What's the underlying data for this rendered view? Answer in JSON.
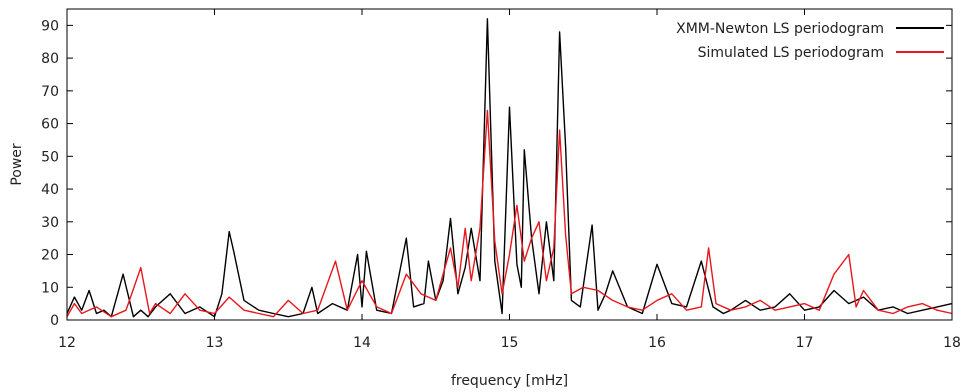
{
  "chart_data": {
    "type": "line",
    "title": "",
    "xlabel": "frequency [mHz]",
    "ylabel": "Power",
    "xlim": [
      12,
      18
    ],
    "ylim": [
      0,
      95
    ],
    "xticks": [
      12,
      13,
      14,
      15,
      16,
      17,
      18
    ],
    "yticks": [
      0,
      10,
      20,
      30,
      40,
      50,
      60,
      70,
      80,
      90
    ],
    "grid": false,
    "legend_position": "top-right",
    "series": [
      {
        "name": "XMM-Newton LS periodogram",
        "color": "#000000",
        "x": [
          12.0,
          12.05,
          12.1,
          12.15,
          12.2,
          12.25,
          12.3,
          12.38,
          12.45,
          12.5,
          12.55,
          12.6,
          12.7,
          12.8,
          12.9,
          13.0,
          13.05,
          13.1,
          13.13,
          13.2,
          13.3,
          13.4,
          13.5,
          13.6,
          13.66,
          13.7,
          13.8,
          13.9,
          13.97,
          14.0,
          14.03,
          14.1,
          14.2,
          14.3,
          14.35,
          14.42,
          14.45,
          14.5,
          14.55,
          14.6,
          14.65,
          14.7,
          14.74,
          14.8,
          14.85,
          14.9,
          14.95,
          15.0,
          15.05,
          15.08,
          15.1,
          15.15,
          15.2,
          15.25,
          15.3,
          15.34,
          15.38,
          15.42,
          15.48,
          15.56,
          15.6,
          15.65,
          15.7,
          15.8,
          15.9,
          16.0,
          16.1,
          16.2,
          16.3,
          16.38,
          16.45,
          16.5,
          16.6,
          16.7,
          16.8,
          16.9,
          17.0,
          17.1,
          17.2,
          17.3,
          17.4,
          17.5,
          17.6,
          17.7,
          17.8,
          17.9,
          18.0
        ],
        "y": [
          2,
          7,
          3,
          9,
          2,
          3,
          1,
          14,
          1,
          3,
          1,
          4,
          8,
          2,
          4,
          1,
          8,
          27,
          21,
          6,
          3,
          2,
          1,
          2,
          10,
          2,
          5,
          3,
          20,
          4,
          21,
          3,
          2,
          25,
          4,
          5,
          18,
          6,
          12,
          31,
          8,
          16,
          28,
          12,
          92,
          18,
          2,
          65,
          17,
          10,
          52,
          25,
          8,
          30,
          12,
          88,
          53,
          6,
          4,
          29,
          3,
          8,
          15,
          4,
          2,
          17,
          5,
          4,
          18,
          4,
          2,
          3,
          6,
          3,
          4,
          8,
          3,
          4,
          9,
          5,
          7,
          3,
          4,
          2,
          3,
          4,
          5
        ]
      },
      {
        "name": "Simulated LS periodogram",
        "color": "#e8171d",
        "x": [
          12.0,
          12.05,
          12.1,
          12.2,
          12.3,
          12.4,
          12.5,
          12.56,
          12.6,
          12.7,
          12.8,
          12.9,
          13.0,
          13.1,
          13.2,
          13.3,
          13.4,
          13.5,
          13.6,
          13.7,
          13.82,
          13.9,
          14.0,
          14.1,
          14.2,
          14.3,
          14.4,
          14.5,
          14.55,
          14.6,
          14.65,
          14.7,
          14.74,
          14.8,
          14.85,
          14.9,
          14.95,
          15.0,
          15.05,
          15.1,
          15.15,
          15.2,
          15.25,
          15.3,
          15.34,
          15.38,
          15.42,
          15.5,
          15.6,
          15.7,
          15.8,
          15.9,
          16.0,
          16.1,
          16.2,
          16.3,
          16.35,
          16.4,
          16.5,
          16.6,
          16.7,
          16.8,
          16.9,
          17.0,
          17.1,
          17.2,
          17.3,
          17.35,
          17.4,
          17.5,
          17.6,
          17.7,
          17.8,
          17.9,
          18.0
        ],
        "y": [
          1,
          5,
          2,
          4,
          1,
          3,
          16,
          2,
          5,
          2,
          8,
          3,
          2,
          7,
          3,
          2,
          1,
          6,
          2,
          3,
          18,
          3,
          12,
          4,
          2,
          14,
          8,
          6,
          14,
          22,
          10,
          28,
          12,
          28,
          64,
          24,
          8,
          20,
          35,
          18,
          25,
          30,
          12,
          22,
          58,
          26,
          8,
          10,
          9,
          6,
          4,
          3,
          6,
          8,
          3,
          4,
          22,
          5,
          3,
          4,
          6,
          3,
          4,
          5,
          3,
          14,
          20,
          4,
          9,
          3,
          2,
          4,
          5,
          3,
          2
        ]
      }
    ]
  }
}
